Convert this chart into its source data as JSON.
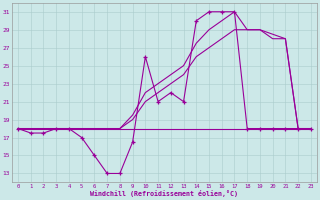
{
  "xlabel": "Windchill (Refroidissement éolien,°C)",
  "background_color": "#cce8e8",
  "line_color": "#990099",
  "hours": [
    0,
    1,
    2,
    3,
    4,
    5,
    6,
    7,
    8,
    9,
    10,
    11,
    12,
    13,
    14,
    15,
    16,
    17,
    18,
    19,
    20,
    21,
    22,
    23
  ],
  "windchill": [
    18,
    17.5,
    17.5,
    18,
    18,
    17,
    15,
    13,
    13,
    16.5,
    26,
    21,
    22,
    21,
    30,
    31,
    31,
    31,
    18,
    18,
    18,
    18,
    18,
    18
  ],
  "line_smooth1": [
    18,
    18,
    18,
    18,
    18,
    18,
    18,
    18,
    18,
    19,
    21,
    22,
    23,
    24,
    26,
    27,
    28,
    29,
    29,
    29,
    28,
    28,
    18,
    18
  ],
  "line_smooth2": [
    18,
    18,
    18,
    18,
    18,
    18,
    18,
    18,
    18,
    19.5,
    22,
    23,
    24,
    25,
    27.5,
    29,
    30,
    31,
    29,
    29,
    28.5,
    28,
    18,
    18
  ],
  "line_flat": [
    18,
    18,
    18,
    18,
    18,
    18,
    18,
    18,
    18,
    18,
    18,
    18,
    18,
    18,
    18,
    18,
    18,
    18,
    18,
    18,
    18,
    18,
    18,
    18
  ],
  "ylim_min": 12,
  "ylim_max": 32,
  "yticks": [
    13,
    15,
    17,
    19,
    21,
    23,
    25,
    27,
    29,
    31
  ],
  "xticks": [
    0,
    1,
    2,
    3,
    4,
    5,
    6,
    7,
    8,
    9,
    10,
    11,
    12,
    13,
    14,
    15,
    16,
    17,
    18,
    19,
    20,
    21,
    22,
    23
  ],
  "figw": 3.2,
  "figh": 2.0,
  "dpi": 100
}
